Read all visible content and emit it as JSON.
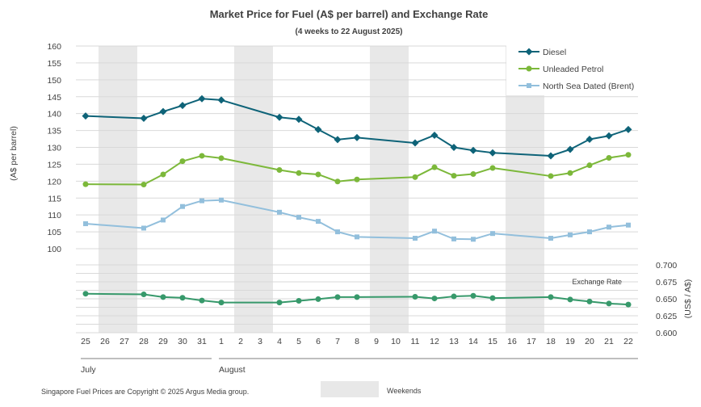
{
  "chart_data": {
    "type": "line",
    "title": "Market Price for Fuel (A$ per barrel) and Exchange Rate",
    "subtitle": "(4 weeks to 22 August 2025)",
    "ylabel": "(A$ per barrel)",
    "y2label": "(US$ / A$)",
    "ylim": [
      100,
      160
    ],
    "yticks": [
      "100",
      "105",
      "110",
      "115",
      "120",
      "125",
      "130",
      "135",
      "140",
      "145",
      "150",
      "155",
      "160"
    ],
    "y2lim": [
      0.6,
      0.7
    ],
    "y2ticks": [
      "0.600",
      "0.625",
      "0.650",
      "0.675",
      "0.700"
    ],
    "y2_series_label": "Exchange Rate",
    "categories": [
      "25",
      "26",
      "27",
      "28",
      "29",
      "30",
      "31",
      "1",
      "2",
      "3",
      "4",
      "5",
      "6",
      "7",
      "8",
      "9",
      "10",
      "11",
      "12",
      "13",
      "14",
      "15",
      "16",
      "17",
      "18",
      "19",
      "20",
      "21",
      "22"
    ],
    "month_labels": [
      "July",
      "August"
    ],
    "weekend_bands": [
      [
        "26",
        "27"
      ],
      [
        "2",
        "3"
      ],
      [
        "9",
        "10"
      ],
      [
        "16",
        "17"
      ]
    ],
    "weekend_label": "Weekends",
    "series": [
      {
        "name": "Diesel",
        "color": "#0e6378",
        "marker": "diamond",
        "values": [
          139.3,
          null,
          null,
          138.6,
          140.6,
          142.4,
          144.4,
          144.0,
          null,
          null,
          138.9,
          138.3,
          135.3,
          132.3,
          132.9,
          null,
          null,
          131.3,
          133.6,
          130.0,
          129.1,
          128.4,
          null,
          null,
          127.5,
          129.4,
          132.4,
          133.4,
          135.3
        ]
      },
      {
        "name": "Unleaded Petrol",
        "color": "#7cb83a",
        "marker": "circle",
        "values": [
          119.1,
          null,
          null,
          119.0,
          122.0,
          125.9,
          127.5,
          126.8,
          null,
          null,
          123.3,
          122.4,
          122.0,
          119.9,
          120.5,
          null,
          null,
          121.2,
          124.1,
          121.6,
          122.1,
          123.9,
          null,
          null,
          121.5,
          122.4,
          124.7,
          126.9,
          127.8
        ]
      },
      {
        "name": "North Sea Dated (Brent)",
        "color": "#92bfdc",
        "marker": "square",
        "values": [
          107.4,
          null,
          null,
          106.1,
          108.5,
          112.5,
          114.2,
          114.4,
          null,
          null,
          110.8,
          109.3,
          108.1,
          105.0,
          103.5,
          null,
          null,
          103.1,
          105.2,
          102.9,
          102.8,
          104.5,
          null,
          null,
          103.1,
          104.1,
          105.0,
          106.4,
          107.0
        ]
      }
    ],
    "exchange_rate": {
      "name": "Exchange Rate",
      "color": "#37996b",
      "marker": "circle",
      "values": [
        0.6575,
        null,
        null,
        0.6565,
        0.6525,
        0.6515,
        0.6475,
        0.6445,
        null,
        null,
        0.6445,
        0.647,
        0.6495,
        0.6525,
        0.6525,
        null,
        null,
        0.653,
        0.6505,
        0.6535,
        0.6545,
        0.651,
        null,
        null,
        0.6525,
        0.649,
        0.646,
        0.643,
        0.6415
      ]
    },
    "legend": "top-right",
    "grid": true
  },
  "footer": {
    "copyright": "Singapore Fuel Prices are Copyright © 2025 Argus Media group."
  }
}
